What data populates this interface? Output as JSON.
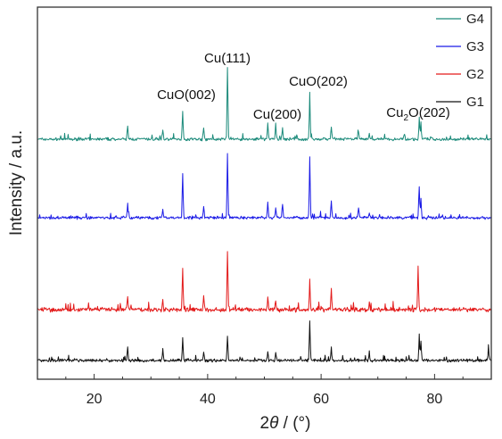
{
  "chart_data": {
    "type": "line",
    "title": "",
    "xlabel_prefix": "2",
    "xlabel_symbol": "θ",
    "xlabel_suffix": " / (°)",
    "ylabel": "Intensity / a.u.",
    "xlim": [
      10,
      90
    ],
    "x_ticks": [
      20,
      40,
      60,
      80
    ],
    "y_ticks_shown": false,
    "legend_position": "top-right",
    "series": [
      {
        "name": "G4",
        "color": "#1b8a7a",
        "peaks": [
          [
            25.9,
            0.18
          ],
          [
            32.1,
            0.14
          ],
          [
            35.6,
            0.4
          ],
          [
            39.3,
            0.16
          ],
          [
            43.5,
            1.0
          ],
          [
            50.6,
            0.22
          ],
          [
            52.0,
            0.2
          ],
          [
            53.2,
            0.16
          ],
          [
            58.0,
            0.63
          ],
          [
            61.8,
            0.18
          ],
          [
            66.6,
            0.1
          ],
          [
            68.5,
            0.08
          ],
          [
            74.7,
            0.08
          ],
          [
            77.3,
            0.3
          ],
          [
            77.6,
            0.22
          ]
        ]
      },
      {
        "name": "G3",
        "color": "#1a1ae6",
        "peaks": [
          [
            25.9,
            0.18
          ],
          [
            32.1,
            0.1
          ],
          [
            35.6,
            0.56
          ],
          [
            39.3,
            0.14
          ],
          [
            43.5,
            0.78
          ],
          [
            50.6,
            0.2
          ],
          [
            52.0,
            0.12
          ],
          [
            53.2,
            0.18
          ],
          [
            58.0,
            0.75
          ],
          [
            61.8,
            0.22
          ],
          [
            66.6,
            0.12
          ],
          [
            68.5,
            0.06
          ],
          [
            77.3,
            0.38
          ],
          [
            77.6,
            0.24
          ]
        ]
      },
      {
        "name": "G2",
        "color": "#e31a1a",
        "peaks": [
          [
            25.9,
            0.16
          ],
          [
            32.1,
            0.1
          ],
          [
            35.6,
            0.52
          ],
          [
            39.3,
            0.16
          ],
          [
            43.5,
            0.7
          ],
          [
            50.6,
            0.14
          ],
          [
            52.0,
            0.12
          ],
          [
            58.0,
            0.38
          ],
          [
            61.8,
            0.26
          ],
          [
            68.5,
            0.1
          ],
          [
            77.1,
            0.52
          ]
        ]
      },
      {
        "name": "G1",
        "color": "#111111",
        "peaks": [
          [
            25.9,
            0.18
          ],
          [
            32.1,
            0.18
          ],
          [
            35.6,
            0.32
          ],
          [
            39.3,
            0.12
          ],
          [
            43.5,
            0.34
          ],
          [
            50.6,
            0.14
          ],
          [
            52.0,
            0.12
          ],
          [
            58.0,
            0.58
          ],
          [
            61.8,
            0.18
          ],
          [
            68.5,
            0.12
          ],
          [
            77.3,
            0.36
          ],
          [
            77.6,
            0.28
          ],
          [
            89.5,
            0.16
          ]
        ]
      }
    ],
    "annotations": [
      {
        "series": "G4",
        "x": 35.6,
        "label": "CuO(002)"
      },
      {
        "series": "G4",
        "x": 43.5,
        "label": "Cu(111)"
      },
      {
        "series": "G4",
        "x": 50.6,
        "label": "Cu(200)"
      },
      {
        "series": "G4",
        "x": 58.0,
        "label": "CuO(202)"
      },
      {
        "series": "G4",
        "x": 77.3,
        "label_parts": [
          "Cu",
          "2",
          "O(202)"
        ]
      }
    ]
  }
}
